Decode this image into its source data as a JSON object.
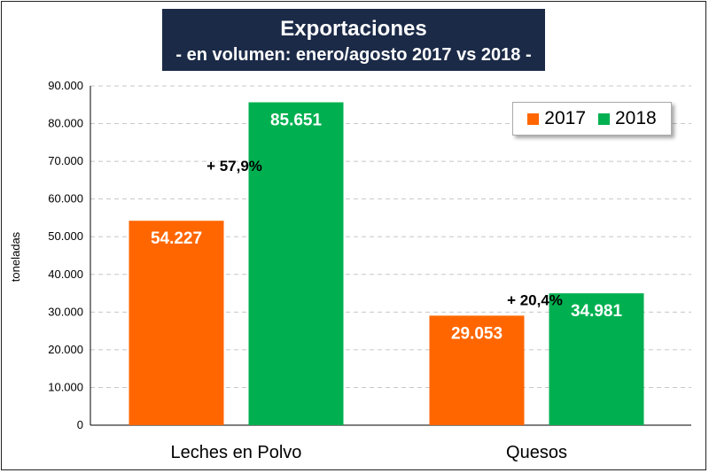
{
  "title": "Exportaciones",
  "subtitle": "- en volumen: enero/agosto 2017 vs 2018 -",
  "colors": {
    "s2017": "#ff6600",
    "s2018": "#00b050",
    "title_bg": "#1b2a47"
  },
  "chart_data": {
    "type": "bar",
    "title": "Exportaciones",
    "subtitle": "- en volumen: enero/agosto 2017 vs 2018 -",
    "xlabel": "",
    "ylabel": "toneladas",
    "ylim": [
      0,
      90000
    ],
    "yticks": [
      "0",
      "10.000",
      "20.000",
      "30.000",
      "40.000",
      "50.000",
      "60.000",
      "70.000",
      "80.000",
      "90.000"
    ],
    "categories": [
      "Leches en Polvo",
      "Quesos"
    ],
    "series": [
      {
        "name": "2017",
        "values": [
          54227,
          29053
        ],
        "labels": [
          "54.227",
          "29.053"
        ]
      },
      {
        "name": "2018",
        "values": [
          85651,
          34981
        ],
        "labels": [
          "85.651",
          "34.981"
        ]
      }
    ],
    "annotations": [
      "+ 57,9%",
      "+ 20,4%"
    ],
    "legend_position": "top-right",
    "grid": true
  }
}
